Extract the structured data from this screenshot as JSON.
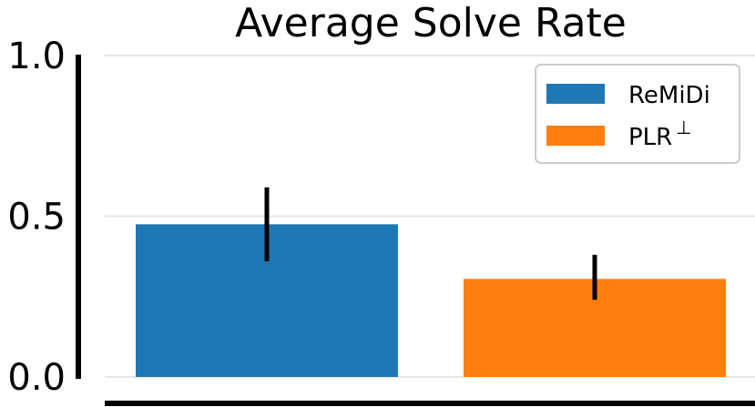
{
  "chart_data": {
    "type": "bar",
    "title": "Average Solve Rate",
    "xlabel": "",
    "ylabel": "",
    "ylim": [
      0,
      1.0
    ],
    "yticks": [
      {
        "value": 0.0,
        "label": "0.0"
      },
      {
        "value": 0.5,
        "label": "0.5"
      },
      {
        "value": 1.0,
        "label": "1.0"
      }
    ],
    "grid": true,
    "legend": "top-right",
    "series": [
      {
        "name": "ReMiDi",
        "value": 0.475,
        "err_low": 0.36,
        "err_high": 0.59,
        "color": "#1f77b4"
      },
      {
        "name": "PLR",
        "name_sup": "⊥",
        "value": 0.305,
        "err_low": 0.24,
        "err_high": 0.38,
        "color": "#ff7f0e"
      }
    ]
  }
}
